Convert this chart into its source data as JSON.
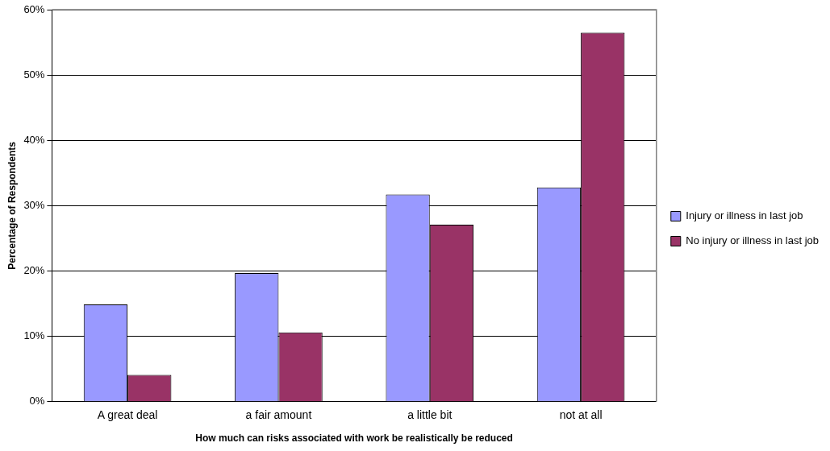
{
  "chart_data": {
    "type": "bar",
    "xlabel": "How much can risks associated with work be realistically be reduced",
    "ylabel": "Percentage of Respondents",
    "categories": [
      "A great deal",
      "a fair amount",
      "a little bit",
      "not at all"
    ],
    "series": [
      {
        "name": "Injury or illness in last job",
        "color": "#9999ff",
        "values": [
          14.9,
          19.7,
          31.7,
          32.8
        ]
      },
      {
        "name": "No injury or illness in last job",
        "color": "#993366",
        "values": [
          4.1,
          10.6,
          27.1,
          56.5
        ]
      }
    ],
    "ylim": [
      0,
      60
    ],
    "yticks": [
      {
        "value": 0,
        "label": "0%"
      },
      {
        "value": 10,
        "label": "10%"
      },
      {
        "value": 20,
        "label": "20%"
      },
      {
        "value": 30,
        "label": "30%"
      },
      {
        "value": 40,
        "label": "40%"
      },
      {
        "value": 50,
        "label": "50%"
      },
      {
        "value": 60,
        "label": "60%"
      }
    ],
    "grid": "y",
    "legend": "right"
  }
}
